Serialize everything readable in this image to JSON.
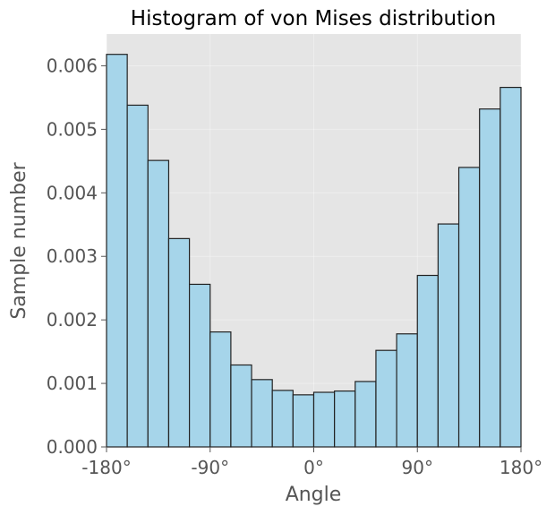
{
  "chart_data": {
    "type": "bar",
    "title": "Histogram of von Mises distribution",
    "xlabel": "Angle",
    "ylabel": "Sample number",
    "xlim": [
      -180,
      180
    ],
    "ylim": [
      0,
      0.0065
    ],
    "grid": true,
    "background": "#e5e5e5",
    "bar_color": "#a6d5ea",
    "edge_color": "#222222",
    "bin_edges": [
      -180,
      -162,
      -144,
      -126,
      -108,
      -90,
      -72,
      -54,
      -36,
      -18,
      0,
      18,
      36,
      54,
      72,
      90,
      108,
      126,
      144,
      162,
      180
    ],
    "values": [
      0.00618,
      0.00538,
      0.00451,
      0.00328,
      0.00256,
      0.00181,
      0.00129,
      0.00106,
      0.00089,
      0.00082,
      0.00086,
      0.00088,
      0.00103,
      0.00152,
      0.00178,
      0.0027,
      0.00351,
      0.0044,
      0.00532,
      0.00566
    ],
    "xticks": [
      {
        "value": -180,
        "label": "-180°"
      },
      {
        "value": -90,
        "label": "-90°"
      },
      {
        "value": 0,
        "label": "0°"
      },
      {
        "value": 90,
        "label": "90°"
      },
      {
        "value": 180,
        "label": "180°"
      }
    ],
    "yticks": [
      {
        "value": 0,
        "label": "0.000"
      },
      {
        "value": 0.001,
        "label": "0.001"
      },
      {
        "value": 0.002,
        "label": "0.002"
      },
      {
        "value": 0.003,
        "label": "0.003"
      },
      {
        "value": 0.004,
        "label": "0.004"
      },
      {
        "value": 0.005,
        "label": "0.005"
      },
      {
        "value": 0.006,
        "label": "0.006"
      }
    ]
  }
}
